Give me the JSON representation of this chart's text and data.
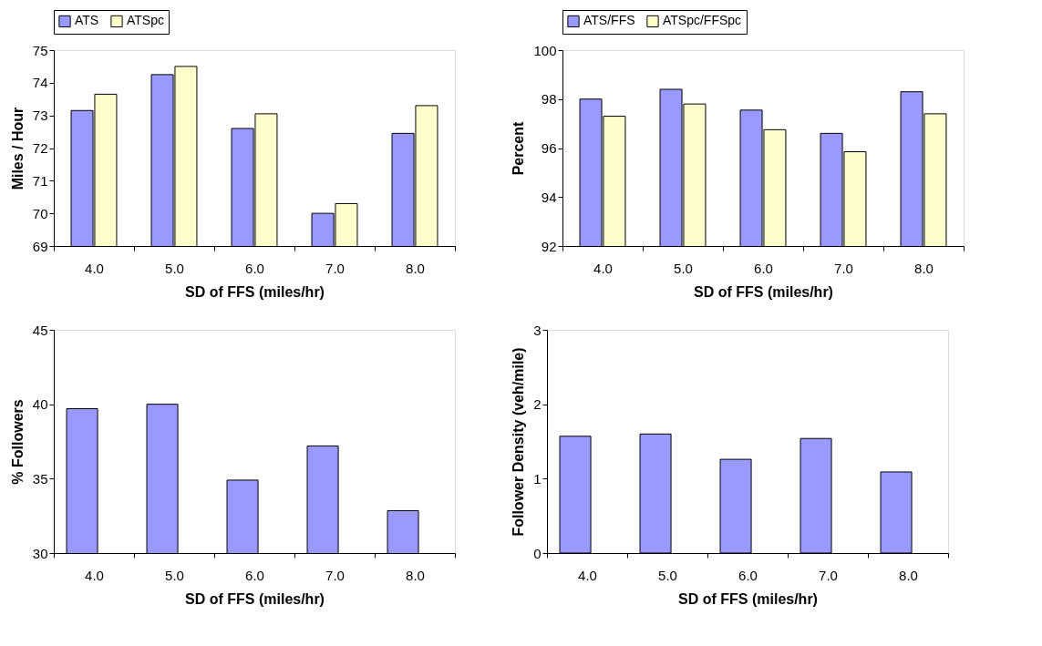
{
  "chart_data": [
    {
      "type": "bar",
      "categories": [
        "4.0",
        "5.0",
        "6.0",
        "7.0",
        "8.0"
      ],
      "xlabel": "SD of FFS (miles/hr)",
      "ylabel": "Miles / Hour",
      "ylim": [
        69,
        75
      ],
      "yticks": [
        69,
        70,
        71,
        72,
        73,
        74,
        75
      ],
      "grid": false,
      "legend": "top",
      "series": [
        {
          "name": "ATS",
          "color": "#9999ff",
          "values": [
            73.15,
            74.25,
            72.6,
            70.0,
            72.45
          ]
        },
        {
          "name": "ATSpc",
          "color": "#ffffcc",
          "values": [
            73.65,
            74.5,
            73.05,
            70.3,
            73.3
          ]
        }
      ]
    },
    {
      "type": "bar",
      "categories": [
        "4.0",
        "5.0",
        "6.0",
        "7.0",
        "8.0"
      ],
      "xlabel": "SD of FFS (miles/hr)",
      "ylabel": "Percent",
      "ylim": [
        92,
        100
      ],
      "yticks": [
        92,
        94,
        96,
        98,
        100
      ],
      "grid": false,
      "legend": "top",
      "series": [
        {
          "name": "ATS/FFS",
          "color": "#9999ff",
          "values": [
            98.0,
            98.4,
            97.55,
            96.6,
            98.3
          ]
        },
        {
          "name": "ATSpc/FFSpc",
          "color": "#ffffcc",
          "values": [
            97.3,
            97.8,
            96.75,
            95.85,
            97.4
          ]
        }
      ]
    },
    {
      "type": "bar",
      "categories": [
        "4.0",
        "5.0",
        "6.0",
        "7.0",
        "8.0"
      ],
      "xlabel": "SD of FFS (miles/hr)",
      "ylabel": "% Followers",
      "ylim": [
        30,
        45
      ],
      "yticks": [
        30,
        35,
        40,
        45
      ],
      "grid": false,
      "series": [
        {
          "color": "#9999ff",
          "values": [
            39.7,
            40.0,
            34.9,
            37.2,
            32.85
          ]
        }
      ]
    },
    {
      "type": "bar",
      "categories": [
        "4.0",
        "5.0",
        "6.0",
        "7.0",
        "8.0"
      ],
      "xlabel": "SD of FFS (miles/hr)",
      "ylabel": "Follower Density (veh/mile)",
      "ylim": [
        0,
        3
      ],
      "yticks": [
        0,
        1,
        2,
        3
      ],
      "grid": false,
      "series": [
        {
          "color": "#9999ff",
          "values": [
            1.57,
            1.6,
            1.26,
            1.54,
            1.09
          ]
        }
      ]
    }
  ]
}
